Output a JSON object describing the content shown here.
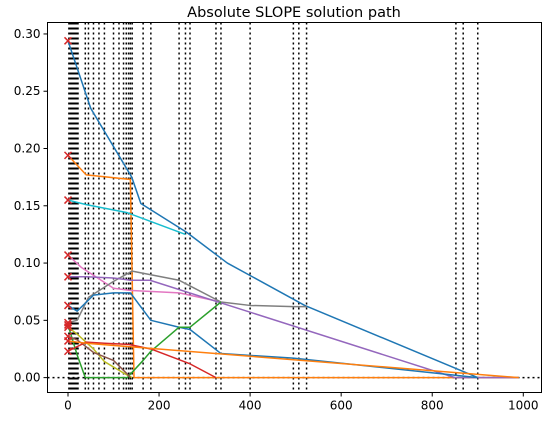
{
  "chart_data": {
    "type": "line",
    "title": "Absolute SLOPE solution path",
    "xlabel": "",
    "ylabel": "",
    "xlim": [
      -45,
      1040
    ],
    "ylim": [
      -0.013,
      0.31
    ],
    "xticks": [
      0,
      200,
      400,
      600,
      800,
      1000
    ],
    "xtick_labels": [
      "0",
      "200",
      "400",
      "600",
      "800",
      "1000"
    ],
    "yticks": [
      0.0,
      0.05,
      0.1,
      0.15,
      0.2,
      0.25,
      0.3
    ],
    "ytick_labels": [
      "0.00",
      "0.05",
      "0.10",
      "0.15",
      "0.20",
      "0.25",
      "0.30"
    ],
    "grid": false,
    "legend": "none",
    "zero_line": {
      "y": 0,
      "style": "dotted",
      "color": "#000000"
    },
    "vertical_lines": [
      2,
      4,
      6,
      8,
      10,
      12,
      14,
      16,
      18,
      20,
      22,
      38,
      45,
      56,
      68,
      80,
      100,
      112,
      122,
      128,
      133,
      137,
      141,
      165,
      182,
      244,
      258,
      268,
      325,
      336,
      400,
      495,
      507,
      524,
      852,
      868,
      900
    ],
    "start_markers": {
      "x": 0,
      "y": [
        0.294,
        0.194,
        0.155,
        0.107,
        0.088,
        0.063,
        0.048,
        0.046,
        0.044,
        0.036,
        0.032,
        0.023
      ],
      "color": "#d62728",
      "marker": "x"
    },
    "series": [
      {
        "color": "#1f77b4",
        "x": [
          0,
          50,
          140,
          160,
          260,
          350,
          520,
          900,
          990
        ],
        "y": [
          0.294,
          0.235,
          0.175,
          0.152,
          0.127,
          0.1,
          0.063,
          0.0,
          0.0
        ]
      },
      {
        "color": "#ff7f0e",
        "x": [
          0,
          40,
          137,
          145,
          990
        ],
        "y": [
          0.194,
          0.177,
          0.173,
          0.0,
          0.0
        ]
      },
      {
        "color": "#17becf",
        "x": [
          0,
          40,
          130,
          258
        ],
        "y": [
          0.155,
          0.151,
          0.144,
          0.125
        ]
      },
      {
        "color": "#e377c2",
        "x": [
          0,
          30,
          100,
          140,
          244,
          336
        ],
        "y": [
          0.107,
          0.096,
          0.078,
          0.076,
          0.074,
          0.066
        ]
      },
      {
        "color": "#7f7f7f",
        "x": [
          0,
          20,
          45,
          100,
          141,
          244,
          268,
          336,
          400,
          495,
          524
        ],
        "y": [
          0.048,
          0.05,
          0.07,
          0.084,
          0.093,
          0.085,
          0.08,
          0.066,
          0.063,
          0.062,
          0.062
        ]
      },
      {
        "color": "#9467bd",
        "x": [
          0,
          40,
          100,
          137,
          180,
          850,
          868,
          990
        ],
        "y": [
          0.088,
          0.088,
          0.087,
          0.085,
          0.085,
          0.0,
          0.0,
          0.0
        ]
      },
      {
        "color": "#1f77b4",
        "x": [
          0,
          20,
          56,
          100,
          137,
          182,
          244,
          268,
          336,
          495,
          900
        ],
        "y": [
          0.063,
          0.058,
          0.072,
          0.074,
          0.074,
          0.05,
          0.044,
          0.042,
          0.021,
          0.017,
          0.0
        ]
      },
      {
        "color": "#2ca02c",
        "x": [
          0,
          20,
          38,
          100,
          130,
          165,
          182,
          244,
          268,
          336
        ],
        "y": [
          0.046,
          0.02,
          0.0,
          0.0,
          0.0,
          0.015,
          0.023,
          0.044,
          0.044,
          0.066
        ]
      },
      {
        "color": "#bcbd22",
        "x": [
          0,
          20,
          56,
          80,
          122,
          141
        ],
        "y": [
          0.044,
          0.038,
          0.025,
          0.014,
          0.004,
          0.0
        ]
      },
      {
        "color": "#8c564b",
        "x": [
          0,
          20,
          56,
          100,
          128,
          137
        ],
        "y": [
          0.036,
          0.033,
          0.022,
          0.015,
          0.004,
          0.0
        ]
      },
      {
        "color": "#d62728",
        "x": [
          0,
          40,
          80,
          133,
          182,
          268,
          325
        ],
        "y": [
          0.023,
          0.031,
          0.03,
          0.029,
          0.025,
          0.012,
          0.0
        ]
      },
      {
        "color": "#ff7f0e",
        "x": [
          0,
          40,
          990
        ],
        "y": [
          0.032,
          0.03,
          0.0
        ]
      }
    ]
  }
}
